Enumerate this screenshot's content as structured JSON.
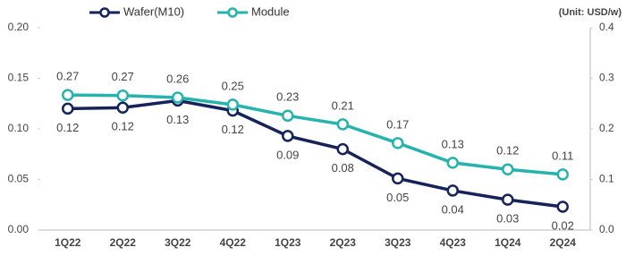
{
  "chart_data": {
    "type": "line",
    "annotation": "(Unit: USD/w)",
    "categories": [
      "1Q22",
      "2Q22",
      "3Q22",
      "4Q22",
      "1Q23",
      "2Q23",
      "3Q23",
      "4Q23",
      "1Q24",
      "2Q24"
    ],
    "series": [
      {
        "name": "Wafer(M10)",
        "color": "#15235a",
        "axis": "y",
        "values": [
          0.12,
          0.121,
          0.128,
          0.118,
          0.093,
          0.08,
          0.051,
          0.039,
          0.03,
          0.023
        ],
        "value_labels": [
          "0.12",
          "0.12",
          "0.13",
          "0.12",
          "0.09",
          "0.08",
          "0.05",
          "0.04",
          "0.03",
          "0.02"
        ]
      },
      {
        "name": "Module",
        "color": "#26b3ae",
        "axis": "y2",
        "values": [
          0.267,
          0.266,
          0.262,
          0.248,
          0.226,
          0.209,
          0.172,
          0.133,
          0.12,
          0.11
        ],
        "value_labels": [
          "0.27",
          "0.27",
          "0.26",
          "0.25",
          "0.23",
          "0.21",
          "0.17",
          "0.13",
          "0.12",
          "0.11"
        ]
      }
    ],
    "ylim": [
      0,
      0.2
    ],
    "yticks": [
      {
        "value": 0,
        "label": "0.00"
      },
      0.05,
      {
        "value": 0.1,
        "label": "0.10"
      },
      0.15,
      {
        "value": 0.2,
        "label": "0.20"
      }
    ],
    "y2lim": [
      0,
      0.4
    ],
    "y2ticks": [
      {
        "value": 0,
        "label": "0.0"
      },
      0.1,
      0.2,
      0.3,
      0.4
    ],
    "grid": false,
    "legend": "top"
  }
}
